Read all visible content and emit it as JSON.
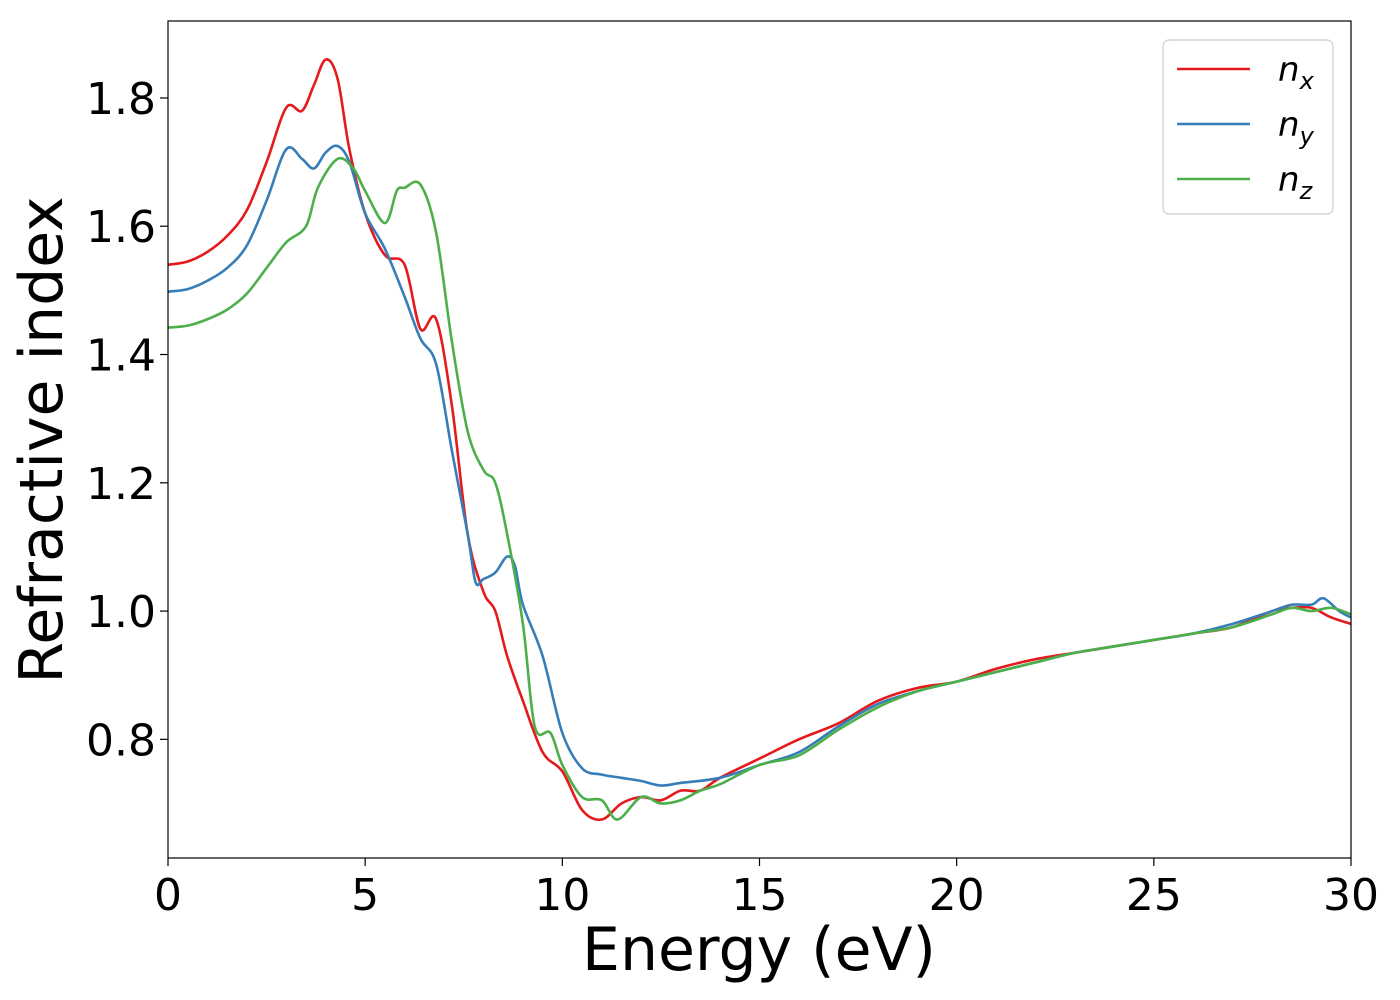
{
  "chart_data": {
    "type": "line",
    "xlabel": "Energy (eV)",
    "ylabel": "Refractive index",
    "xlim": [
      0,
      30
    ],
    "ylim": [
      0.615,
      1.92
    ],
    "xticks": [
      0,
      5,
      10,
      15,
      20,
      25,
      30
    ],
    "yticks": [
      0.8,
      1.0,
      1.2,
      1.4,
      1.6,
      1.8
    ],
    "xtick_labels": [
      "0",
      "5",
      "10",
      "15",
      "20",
      "25",
      "30"
    ],
    "ytick_labels": [
      "0.8",
      "1.0",
      "1.2",
      "1.4",
      "1.6",
      "1.8"
    ],
    "grid": false,
    "legend_position": "top-right",
    "series": [
      {
        "name": "n_x",
        "label_base": "n",
        "label_sub": "x",
        "color": "#e41a1c",
        "x": [
          0,
          0.5,
          1,
          1.5,
          2,
          2.5,
          3,
          3.4,
          3.7,
          4,
          4.3,
          4.6,
          5,
          5.5,
          6,
          6.4,
          6.8,
          7.2,
          7.6,
          8,
          8.3,
          8.6,
          9,
          9.5,
          10,
          10.5,
          11,
          11.5,
          12,
          12.5,
          13,
          13.5,
          14,
          15,
          16,
          17,
          18,
          19,
          20,
          21,
          22,
          23,
          24,
          25,
          26,
          27,
          28,
          28.5,
          29,
          29.5,
          30
        ],
        "y": [
          1.54,
          1.545,
          1.56,
          1.585,
          1.625,
          1.7,
          1.785,
          1.78,
          1.82,
          1.86,
          1.83,
          1.72,
          1.62,
          1.555,
          1.54,
          1.44,
          1.455,
          1.32,
          1.12,
          1.03,
          1.0,
          0.93,
          0.86,
          0.78,
          0.75,
          0.69,
          0.675,
          0.7,
          0.71,
          0.705,
          0.72,
          0.72,
          0.74,
          0.77,
          0.8,
          0.825,
          0.86,
          0.88,
          0.89,
          0.91,
          0.925,
          0.935,
          0.945,
          0.955,
          0.965,
          0.975,
          1.0,
          1.005,
          1.005,
          0.99,
          0.98
        ]
      },
      {
        "name": "n_y",
        "label_base": "n",
        "label_sub": "y",
        "color": "#377eb8",
        "x": [
          0,
          0.5,
          1,
          1.5,
          2,
          2.5,
          3,
          3.4,
          3.7,
          4,
          4.3,
          4.6,
          5,
          5.5,
          6,
          6.4,
          6.8,
          7.2,
          7.6,
          7.8,
          8,
          8.3,
          8.6,
          8.8,
          9,
          9.5,
          10,
          10.5,
          11,
          11.5,
          12,
          12.5,
          13,
          14,
          15,
          16,
          17,
          18,
          19,
          20,
          21,
          22,
          23,
          24,
          25,
          26,
          27,
          28,
          28.5,
          29,
          29.3,
          29.7,
          30
        ],
        "y": [
          1.498,
          1.502,
          1.515,
          1.535,
          1.57,
          1.64,
          1.72,
          1.705,
          1.69,
          1.715,
          1.725,
          1.7,
          1.62,
          1.565,
          1.49,
          1.425,
          1.385,
          1.25,
          1.12,
          1.045,
          1.05,
          1.06,
          1.085,
          1.07,
          1.01,
          0.93,
          0.81,
          0.755,
          0.745,
          0.74,
          0.735,
          0.728,
          0.732,
          0.74,
          0.76,
          0.78,
          0.82,
          0.855,
          0.875,
          0.89,
          0.905,
          0.92,
          0.935,
          0.945,
          0.955,
          0.965,
          0.98,
          1.0,
          1.01,
          1.01,
          1.02,
          1.0,
          0.99
        ]
      },
      {
        "name": "n_z",
        "label_base": "n",
        "label_sub": "z",
        "color": "#4daf4a",
        "x": [
          0,
          0.5,
          1,
          1.5,
          2,
          2.5,
          3,
          3.5,
          3.8,
          4.3,
          4.7,
          5,
          5.5,
          5.8,
          6.0,
          6.4,
          6.8,
          7.2,
          7.6,
          8.0,
          8.3,
          8.6,
          9.0,
          9.3,
          9.7,
          10,
          10.5,
          11,
          11.4,
          12,
          12.5,
          13,
          13.5,
          14,
          15,
          16,
          17,
          18,
          19,
          20,
          21,
          22,
          23,
          24,
          25,
          26,
          27,
          28,
          28.5,
          29,
          29.5,
          30
        ],
        "y": [
          1.442,
          1.445,
          1.455,
          1.47,
          1.495,
          1.535,
          1.575,
          1.6,
          1.66,
          1.705,
          1.69,
          1.655,
          1.605,
          1.655,
          1.66,
          1.665,
          1.59,
          1.42,
          1.28,
          1.22,
          1.2,
          1.12,
          0.98,
          0.82,
          0.81,
          0.76,
          0.71,
          0.705,
          0.675,
          0.71,
          0.7,
          0.705,
          0.72,
          0.73,
          0.76,
          0.775,
          0.815,
          0.85,
          0.875,
          0.89,
          0.905,
          0.92,
          0.935,
          0.945,
          0.955,
          0.965,
          0.975,
          0.995,
          1.005,
          1.0,
          1.005,
          0.995
        ]
      }
    ]
  }
}
